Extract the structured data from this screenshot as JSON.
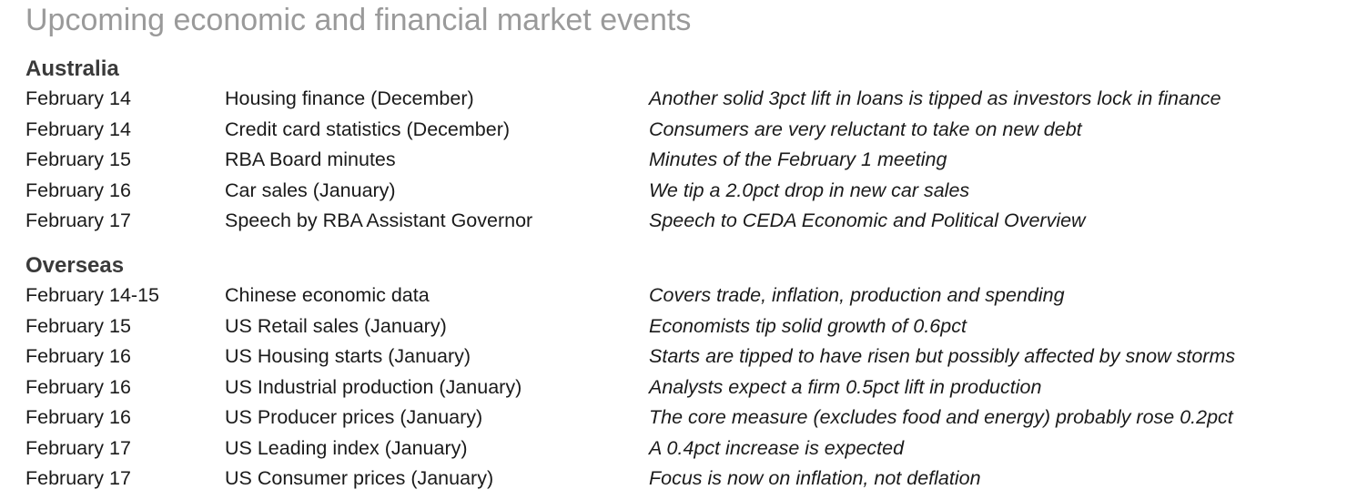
{
  "title": "Upcoming economic and financial market events",
  "sections": [
    {
      "heading": "Australia",
      "rows": [
        {
          "date": "February 14",
          "event": "Housing finance (December)",
          "note": "Another solid 3pct lift in loans is tipped as investors lock in finance"
        },
        {
          "date": "February 14",
          "event": "Credit card statistics (December)",
          "note": "Consumers are very reluctant to take on new debt"
        },
        {
          "date": "February 15",
          "event": "RBA Board minutes",
          "note": "Minutes of the February 1 meeting"
        },
        {
          "date": "February 16",
          "event": "Car sales (January)",
          "note": "We tip a 2.0pct drop in new car sales"
        },
        {
          "date": "February 17",
          "event": "Speech by RBA Assistant Governor",
          "note": "Speech to CEDA Economic and Political Overview"
        }
      ]
    },
    {
      "heading": "Overseas",
      "rows": [
        {
          "date": "February 14-15",
          "event": "Chinese economic data",
          "note": "Covers trade, inflation, production and spending"
        },
        {
          "date": "February 15",
          "event": "US Retail sales (January)",
          "note": "Economists tip solid growth of 0.6pct"
        },
        {
          "date": "February 16",
          "event": "US Housing starts (January)",
          "note": "Starts are tipped to have risen but possibly affected by snow storms"
        },
        {
          "date": "February 16",
          "event": "US Industrial production (January)",
          "note": "Analysts expect a firm 0.5pct lift in production"
        },
        {
          "date": "February 16",
          "event": "US Producer prices (January)",
          "note": "The core measure (excludes food and energy) probably rose 0.2pct"
        },
        {
          "date": "February 17",
          "event": "US Leading index (January)",
          "note": "A 0.4pct increase is expected"
        },
        {
          "date": "February 17",
          "event": "US Consumer prices (January)",
          "note": "Focus is now on inflation, not deflation"
        }
      ]
    }
  ]
}
